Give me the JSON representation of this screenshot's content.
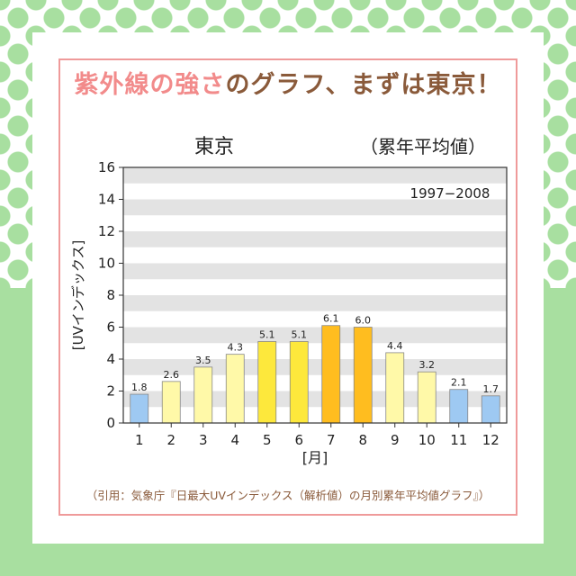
{
  "heading": {
    "highlight": "紫外線の強さ",
    "rest": "のグラフ、まずは東京！"
  },
  "citation": "（引用：気象庁『日最大UVインデックス（解析値）の月別累年平均値グラフ』）",
  "colors": {
    "blue": "#9ec9f2",
    "pale_yellow": "#fff9a8",
    "yellow": "#fde83c",
    "orange": "#ffbd1f",
    "heading_pink": "#f28b8b",
    "heading_brown": "#8a5a3a",
    "frame": "#ef9a9a",
    "background_green": "#a8dfa0"
  },
  "chart_data": {
    "type": "bar",
    "title": "東京",
    "subtitle": "（累年平均値）",
    "annotation": "1997−2008",
    "xlabel": "[月]",
    "ylabel": "[UVインデックス]",
    "ylim": [
      0,
      16
    ],
    "yticks": [
      0,
      2,
      4,
      6,
      8,
      10,
      12,
      14,
      16
    ],
    "categories": [
      "1",
      "2",
      "3",
      "4",
      "5",
      "6",
      "7",
      "8",
      "9",
      "10",
      "11",
      "12"
    ],
    "values": [
      1.8,
      2.6,
      3.5,
      4.3,
      5.1,
      5.1,
      6.1,
      6.0,
      4.4,
      3.2,
      2.1,
      1.7
    ],
    "labels": [
      "1.8",
      "2.6",
      "3.5",
      "4.3",
      "5.1",
      "5.1",
      "6.1",
      "6.0",
      "4.4",
      "3.2",
      "2.1",
      "1.7"
    ],
    "bar_colors": [
      "#9ec9f2",
      "#fff9a8",
      "#fff9a8",
      "#fff9a8",
      "#fde83c",
      "#fde83c",
      "#ffbd1f",
      "#ffbd1f",
      "#fff9a8",
      "#fff9a8",
      "#9ec9f2",
      "#9ec9f2"
    ],
    "grid": "alternating horizontal bands"
  }
}
